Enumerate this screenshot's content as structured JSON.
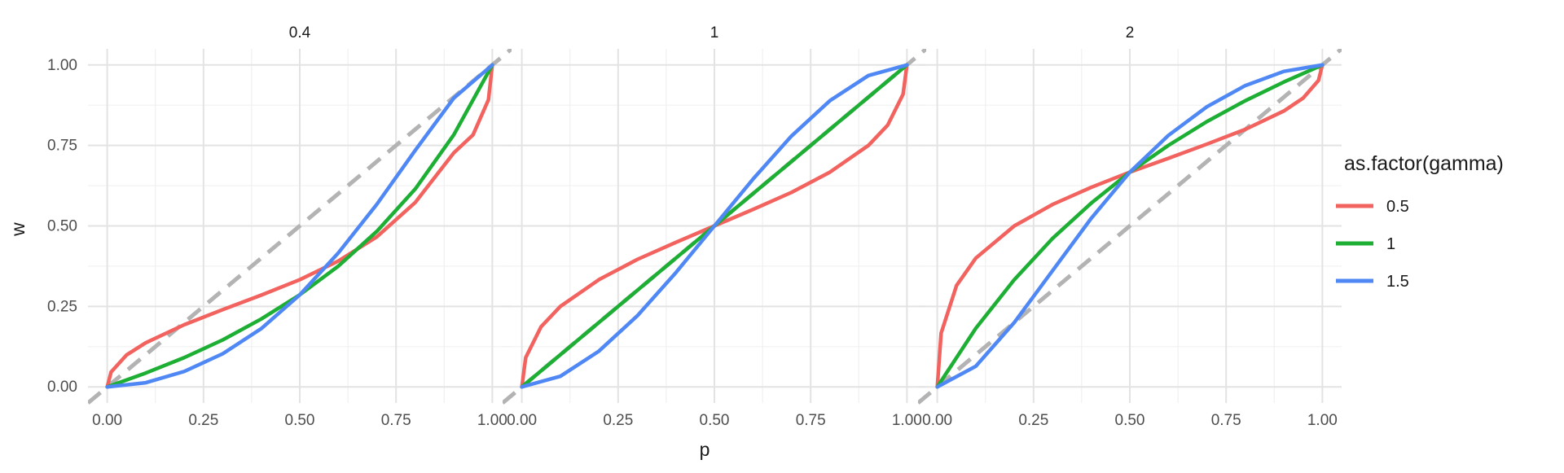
{
  "chart_data": {
    "type": "line",
    "facet_titles": [
      "0.4",
      "1",
      "2"
    ],
    "xlabel": "p",
    "ylabel": "w",
    "xlim": [
      -0.05,
      1.05
    ],
    "ylim": [
      -0.05,
      1.05
    ],
    "x_ticks": [
      "0.00",
      "0.25",
      "0.50",
      "0.75",
      "1.00"
    ],
    "y_ticks": [
      "0.00",
      "0.25",
      "0.50",
      "0.75",
      "1.00"
    ],
    "grid": true,
    "legend": {
      "title": "as.factor(gamma)",
      "position": "right",
      "entries": [
        "0.5",
        "1",
        "1.5"
      ]
    },
    "series_colors": [
      "#F2625E",
      "#1DAE34",
      "#4F88F5"
    ],
    "reference_line": {
      "style": "dashed",
      "color": "#B3B3B3",
      "from": [
        0,
        0
      ],
      "to": [
        1,
        1
      ]
    },
    "facets": [
      {
        "title": "0.4",
        "series": [
          {
            "name": "0.5",
            "x": [
              0,
              0.01,
              0.05,
              0.1,
              0.2,
              0.3,
              0.4,
              0.5,
              0.6,
              0.7,
              0.8,
              0.9,
              0.95,
              0.99,
              1.0
            ],
            "y": [
              0,
              0.046,
              0.099,
              0.137,
              0.193,
              0.24,
              0.285,
              0.333,
              0.391,
              0.466,
              0.573,
              0.727,
              0.783,
              0.892,
              1.0
            ]
          },
          {
            "name": "1",
            "x": [
              0,
              0.1,
              0.2,
              0.3,
              0.4,
              0.5,
              0.6,
              0.7,
              0.8,
              0.9,
              1.0
            ],
            "y": [
              0,
              0.043,
              0.091,
              0.146,
              0.211,
              0.286,
              0.375,
              0.483,
              0.615,
              0.783,
              1.0
            ]
          },
          {
            "name": "1.5",
            "x": [
              0,
              0.1,
              0.2,
              0.3,
              0.4,
              0.5,
              0.6,
              0.7,
              0.8,
              0.9,
              1.0
            ],
            "y": [
              0,
              0.013,
              0.048,
              0.103,
              0.181,
              0.286,
              0.416,
              0.567,
              0.735,
              0.897,
              1.0
            ]
          }
        ]
      },
      {
        "title": "1",
        "series": [
          {
            "name": "0.5",
            "x": [
              0,
              0.01,
              0.05,
              0.1,
              0.2,
              0.3,
              0.4,
              0.5,
              0.6,
              0.7,
              0.8,
              0.9,
              0.95,
              0.99,
              1.0
            ],
            "y": [
              0,
              0.091,
              0.187,
              0.25,
              0.333,
              0.396,
              0.449,
              0.5,
              0.551,
              0.604,
              0.667,
              0.75,
              0.813,
              0.909,
              1.0
            ]
          },
          {
            "name": "1",
            "x": [
              0,
              1.0
            ],
            "y": [
              0,
              1.0
            ]
          },
          {
            "name": "1.5",
            "x": [
              0,
              0.1,
              0.2,
              0.3,
              0.4,
              0.5,
              0.6,
              0.7,
              0.8,
              0.9,
              1.0
            ],
            "y": [
              0,
              0.033,
              0.111,
              0.221,
              0.355,
              0.5,
              0.645,
              0.779,
              0.889,
              0.967,
              1.0
            ]
          }
        ]
      },
      {
        "title": "2",
        "series": [
          {
            "name": "0.5",
            "x": [
              0,
              0.01,
              0.05,
              0.1,
              0.2,
              0.3,
              0.4,
              0.5,
              0.6,
              0.7,
              0.8,
              0.9,
              0.95,
              0.99,
              1.0
            ],
            "y": [
              0,
              0.167,
              0.315,
              0.4,
              0.5,
              0.567,
              0.62,
              0.667,
              0.71,
              0.754,
              0.8,
              0.857,
              0.897,
              0.952,
              1.0
            ]
          },
          {
            "name": "1",
            "x": [
              0,
              0.1,
              0.2,
              0.3,
              0.4,
              0.5,
              0.6,
              0.7,
              0.8,
              0.9,
              1.0
            ],
            "y": [
              0,
              0.182,
              0.333,
              0.462,
              0.571,
              0.667,
              0.75,
              0.824,
              0.889,
              0.947,
              1.0
            ]
          },
          {
            "name": "1.5",
            "x": [
              0,
              0.1,
              0.2,
              0.3,
              0.4,
              0.5,
              0.6,
              0.7,
              0.8,
              0.9,
              1.0
            ],
            "y": [
              0,
              0.064,
              0.2,
              0.362,
              0.524,
              0.667,
              0.781,
              0.87,
              0.936,
              0.98,
              1.0
            ]
          }
        ]
      }
    ]
  }
}
